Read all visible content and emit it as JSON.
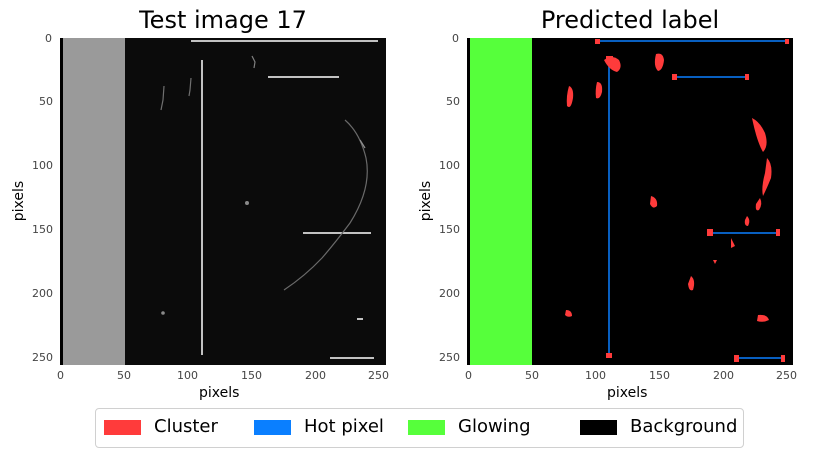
{
  "left_panel": {
    "title": "Test image 17",
    "xlabel": "pixels",
    "ylabel": "pixels",
    "xticks": [
      "0",
      "50",
      "100",
      "150",
      "200",
      "250"
    ],
    "yticks": [
      "0",
      "50",
      "100",
      "150",
      "200",
      "250"
    ]
  },
  "right_panel": {
    "title": "Predicted label",
    "xlabel": "pixels",
    "ylabel": "pixels",
    "xticks": [
      "0",
      "50",
      "100",
      "150",
      "200",
      "250"
    ],
    "yticks": [
      "0",
      "50",
      "100",
      "150",
      "200",
      "250"
    ]
  },
  "legend": {
    "items": [
      {
        "label": "Cluster",
        "color": "#ff3b3b"
      },
      {
        "label": "Hot pixel",
        "color": "#0a7fff"
      },
      {
        "label": "Glowing",
        "color": "#56ff3b"
      },
      {
        "label": "Background",
        "color": "#000000"
      }
    ]
  },
  "colors": {
    "glowing_gray": "#9a9a9a",
    "image_background": "#0b0b0b",
    "cluster": "#ff3b3b",
    "hot_pixel": "#0a7fff",
    "glowing": "#56ff3b"
  }
}
